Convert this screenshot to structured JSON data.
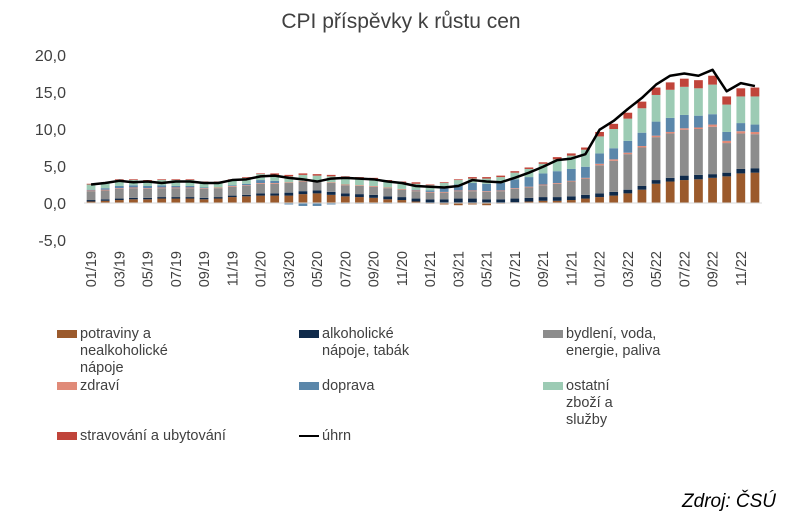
{
  "title": "CPI příspěvky k růstu cen",
  "source": "Zdroj: ČSÚ",
  "chart_data": {
    "type": "bar",
    "stacked": true,
    "title": "CPI příspěvky k růstu cen",
    "ylim": [
      -5,
      20
    ],
    "yticks": [
      -5,
      0,
      5,
      10,
      15,
      20
    ],
    "ytick_labels": [
      "-5,0",
      "0,0",
      "5,0",
      "10,0",
      "15,0",
      "20,0"
    ],
    "categories": [
      "01/19",
      "02/19",
      "03/19",
      "04/19",
      "05/19",
      "06/19",
      "07/19",
      "08/19",
      "09/19",
      "10/19",
      "11/19",
      "12/19",
      "01/20",
      "02/20",
      "03/20",
      "04/20",
      "05/20",
      "06/20",
      "07/20",
      "08/20",
      "09/20",
      "10/20",
      "11/20",
      "12/20",
      "01/21",
      "02/21",
      "03/21",
      "04/21",
      "05/21",
      "06/21",
      "07/21",
      "08/21",
      "09/21",
      "10/21",
      "11/21",
      "12/21",
      "01/22",
      "02/22",
      "03/22",
      "04/22",
      "05/22",
      "06/22",
      "07/22",
      "08/22",
      "09/22",
      "10/22",
      "11/22",
      "12/22"
    ],
    "tick_labels": [
      "01/19",
      "03/19",
      "05/19",
      "07/19",
      "09/19",
      "11/19",
      "01/20",
      "03/20",
      "05/20",
      "07/20",
      "09/20",
      "11/20",
      "01/21",
      "03/21",
      "05/21",
      "07/21",
      "09/21",
      "11/21",
      "01/22",
      "03/22",
      "05/22",
      "07/22",
      "09/22",
      "11/22"
    ],
    "grid": false,
    "legend_position": "bottom",
    "series": [
      {
        "name": "potraviny a nealkoholické nápoje",
        "color": "#9b5a2c",
        "values": [
          0.2,
          0.3,
          0.4,
          0.5,
          0.5,
          0.6,
          0.6,
          0.6,
          0.5,
          0.6,
          0.8,
          0.9,
          1.0,
          1.0,
          1.0,
          1.2,
          1.3,
          1.1,
          0.9,
          0.8,
          0.7,
          0.5,
          0.4,
          0.2,
          -0.1,
          -0.2,
          -0.3,
          -0.2,
          -0.3,
          -0.1,
          0.1,
          0.2,
          0.3,
          0.3,
          0.4,
          0.6,
          0.8,
          1.0,
          1.3,
          1.8,
          2.6,
          2.9,
          3.1,
          3.2,
          3.4,
          3.6,
          4.0,
          4.1
        ]
      },
      {
        "name": "alkoholické nápoje, tabák",
        "color": "#0f2a4a",
        "values": [
          0.2,
          0.2,
          0.2,
          0.2,
          0.2,
          0.2,
          0.2,
          0.2,
          0.2,
          0.2,
          0.2,
          0.2,
          0.3,
          0.3,
          0.4,
          0.4,
          0.4,
          0.4,
          0.4,
          0.4,
          0.4,
          0.4,
          0.4,
          0.4,
          0.5,
          0.5,
          0.6,
          0.6,
          0.5,
          0.5,
          0.5,
          0.5,
          0.5,
          0.5,
          0.5,
          0.5,
          0.5,
          0.5,
          0.5,
          0.5,
          0.5,
          0.5,
          0.6,
          0.6,
          0.5,
          0.5,
          0.6,
          0.6
        ]
      },
      {
        "name": "bydlení, voda, energie, paliva",
        "color": "#8c8c8c",
        "values": [
          1.2,
          1.2,
          1.3,
          1.3,
          1.2,
          1.2,
          1.2,
          1.2,
          1.2,
          1.2,
          1.2,
          1.2,
          1.3,
          1.3,
          1.3,
          1.3,
          1.2,
          1.2,
          1.1,
          1.1,
          1.1,
          1.1,
          1.0,
          1.0,
          0.9,
          0.9,
          1.0,
          1.0,
          1.0,
          1.1,
          1.3,
          1.4,
          1.6,
          1.8,
          2.0,
          2.2,
          3.8,
          4.2,
          4.8,
          5.2,
          5.8,
          6.0,
          6.2,
          6.2,
          6.4,
          4.0,
          4.8,
          4.6
        ]
      },
      {
        "name": "zdraví",
        "color": "#e08a78",
        "values": [
          0.1,
          0.1,
          0.1,
          0.1,
          0.1,
          0.1,
          0.1,
          0.1,
          0.1,
          0.1,
          0.1,
          0.1,
          0.1,
          0.1,
          0.1,
          0.1,
          0.1,
          0.1,
          0.1,
          0.1,
          0.1,
          0.1,
          0.1,
          0.1,
          0.1,
          0.1,
          0.1,
          0.1,
          0.1,
          0.1,
          0.1,
          0.1,
          0.1,
          0.1,
          0.1,
          0.1,
          0.2,
          0.2,
          0.2,
          0.2,
          0.2,
          0.2,
          0.2,
          0.2,
          0.3,
          0.3,
          0.3,
          0.3
        ]
      },
      {
        "name": "doprava",
        "color": "#5b87aa",
        "values": [
          0.1,
          0.2,
          0.3,
          0.3,
          0.3,
          0.3,
          0.2,
          0.2,
          0.1,
          0.0,
          0.1,
          0.2,
          0.4,
          0.3,
          -0.2,
          -0.4,
          -0.4,
          -0.2,
          -0.1,
          -0.1,
          -0.1,
          -0.1,
          0.0,
          0.1,
          0.2,
          0.5,
          0.8,
          1.0,
          1.0,
          1.0,
          1.2,
          1.3,
          1.5,
          1.6,
          1.6,
          1.5,
          1.4,
          1.5,
          1.6,
          1.8,
          1.9,
          1.9,
          1.8,
          1.6,
          1.4,
          1.2,
          1.1,
          1.0
        ]
      },
      {
        "name": "ostatní zboží a služby",
        "color": "#9ccbb4",
        "values": [
          0.7,
          0.7,
          0.8,
          0.7,
          0.7,
          0.7,
          0.8,
          0.8,
          0.7,
          0.7,
          0.7,
          0.8,
          0.8,
          0.8,
          0.8,
          0.8,
          0.7,
          0.8,
          0.9,
          0.9,
          0.9,
          0.8,
          0.8,
          0.8,
          0.7,
          0.7,
          0.6,
          0.6,
          0.7,
          0.8,
          0.9,
          1.1,
          1.3,
          1.6,
          1.8,
          2.3,
          2.3,
          2.6,
          3.0,
          3.3,
          3.6,
          3.8,
          3.8,
          3.7,
          4.0,
          3.7,
          3.6,
          3.8
        ]
      },
      {
        "name": "stravování a ubytování",
        "color": "#c0443a",
        "values": [
          0.1,
          0.1,
          0.1,
          0.1,
          0.1,
          0.1,
          0.1,
          0.1,
          0.1,
          0.1,
          0.1,
          0.1,
          0.1,
          0.2,
          0.2,
          0.2,
          0.2,
          0.2,
          0.2,
          0.2,
          0.2,
          0.2,
          0.2,
          0.2,
          0.1,
          0.1,
          0.1,
          0.2,
          0.2,
          0.2,
          0.2,
          0.2,
          0.2,
          0.3,
          0.3,
          0.3,
          0.6,
          0.7,
          0.8,
          0.9,
          1.0,
          1.0,
          1.1,
          1.1,
          1.2,
          1.1,
          1.1,
          1.2
        ]
      },
      {
        "name": "úhrn",
        "color": "#000000",
        "type": "line",
        "values": [
          2.5,
          2.7,
          3.0,
          2.8,
          2.9,
          2.7,
          2.9,
          2.9,
          2.7,
          2.7,
          3.1,
          3.2,
          3.6,
          3.7,
          3.4,
          3.2,
          2.9,
          3.3,
          3.4,
          3.3,
          3.2,
          2.9,
          2.7,
          2.3,
          2.2,
          2.1,
          2.3,
          3.1,
          2.9,
          2.8,
          3.4,
          4.1,
          4.9,
          5.8,
          6.0,
          6.6,
          9.9,
          11.1,
          12.7,
          14.2,
          16.0,
          17.2,
          17.5,
          17.2,
          18.0,
          15.1,
          16.2,
          15.8
        ]
      }
    ]
  },
  "legend": [
    {
      "label": "potraviny a nealkoholické nápoje",
      "color": "#9b5a2c",
      "kind": "bar"
    },
    {
      "label": "alkoholické nápoje, tabák",
      "color": "#0f2a4a",
      "kind": "bar"
    },
    {
      "label": "bydlení, voda, energie, paliva",
      "color": "#8c8c8c",
      "kind": "bar"
    },
    {
      "label": "zdraví",
      "color": "#e08a78",
      "kind": "bar"
    },
    {
      "label": "doprava",
      "color": "#5b87aa",
      "kind": "bar"
    },
    {
      "label": "ostatní zboží a služby",
      "color": "#9ccbb4",
      "kind": "bar"
    },
    {
      "label": "stravování a ubytování",
      "color": "#c0443a",
      "kind": "bar"
    },
    {
      "label": "úhrn",
      "color": "#000000",
      "kind": "line"
    }
  ]
}
